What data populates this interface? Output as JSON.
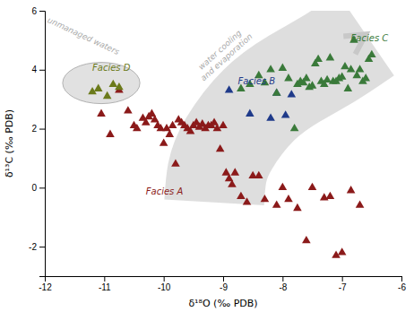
{
  "chart_data": {
    "type": "scatter",
    "xlabel": "δ¹⁸O (‰ PDB)",
    "ylabel": "δ¹³C (‰ PDB)",
    "xlim": [
      -12,
      -6
    ],
    "ylim": [
      -3,
      6
    ],
    "xticks": [
      -12,
      -11,
      -10,
      -9,
      -8,
      -7,
      -6
    ],
    "yticks": [
      -2,
      0,
      2,
      4,
      6
    ],
    "marker": "triangle",
    "series": [
      {
        "name": "Facies A",
        "color": "#8B1A1A",
        "label_x": -10.3,
        "label_y": -0.15,
        "x": [
          -11.05,
          -10.9,
          -10.75,
          -10.6,
          -10.5,
          -10.45,
          -10.35,
          -10.3,
          -10.25,
          -10.2,
          -10.15,
          -10.1,
          -10.05,
          -10.0,
          -9.95,
          -9.9,
          -9.85,
          -9.8,
          -9.75,
          -9.7,
          -9.65,
          -9.6,
          -9.55,
          -9.5,
          -9.45,
          -9.4,
          -9.35,
          -9.3,
          -9.25,
          -9.2,
          -9.15,
          -9.1,
          -9.05,
          -9.0,
          -8.95,
          -8.9,
          -8.85,
          -8.8,
          -8.7,
          -8.6,
          -8.5,
          -8.4,
          -8.3,
          -8.1,
          -8.0,
          -7.9,
          -7.75,
          -7.6,
          -7.5,
          -7.3,
          -7.2,
          -7.1,
          -7.0,
          -6.85,
          -6.7
        ],
        "values": [
          2.5,
          1.8,
          3.3,
          2.6,
          2.1,
          2.0,
          2.35,
          2.2,
          2.4,
          2.5,
          2.3,
          2.1,
          2.0,
          1.5,
          2.0,
          1.8,
          2.1,
          0.8,
          2.3,
          2.2,
          2.1,
          2.0,
          1.9,
          2.1,
          2.2,
          2.05,
          2.15,
          2.0,
          2.1,
          2.1,
          2.2,
          2.0,
          1.3,
          2.1,
          0.5,
          0.3,
          0.1,
          0.5,
          -0.3,
          -0.5,
          0.4,
          0.4,
          -0.4,
          -0.6,
          0.0,
          -0.4,
          -0.7,
          -1.8,
          0.0,
          -0.35,
          -0.3,
          -2.3,
          -2.2,
          -0.1,
          -0.6
        ]
      },
      {
        "name": "Facies B",
        "color": "#1F3A8A",
        "label_x": -8.75,
        "label_y": 3.6,
        "x": [
          -8.9,
          -8.55,
          -8.2,
          -8.1,
          -7.95,
          -7.85
        ],
        "values": [
          3.3,
          2.5,
          2.35,
          3.2,
          2.45,
          3.15
        ]
      },
      {
        "name": "Facies C",
        "color": "#3A7A3A",
        "label_x": -6.85,
        "label_y": 5.05,
        "x": [
          -8.7,
          -8.55,
          -8.4,
          -8.3,
          -8.2,
          -8.1,
          -8.0,
          -7.9,
          -7.8,
          -7.75,
          -7.7,
          -7.65,
          -7.6,
          -7.55,
          -7.5,
          -7.45,
          -7.4,
          -7.35,
          -7.3,
          -7.25,
          -7.2,
          -7.15,
          -7.1,
          -7.05,
          -7.0,
          -6.95,
          -6.9,
          -6.85,
          -6.8,
          -6.75,
          -6.7,
          -6.65,
          -6.6,
          -6.55,
          -6.5
        ],
        "values": [
          3.35,
          3.5,
          3.8,
          3.55,
          4.0,
          3.2,
          4.05,
          3.7,
          2.0,
          3.5,
          3.6,
          3.55,
          3.7,
          3.4,
          3.45,
          4.2,
          4.35,
          3.6,
          3.5,
          3.65,
          4.4,
          3.6,
          3.6,
          3.7,
          3.75,
          4.1,
          3.35,
          4.0,
          5.0,
          3.8,
          4.0,
          3.6,
          3.7,
          4.35,
          4.5
        ]
      },
      {
        "name": "Facies D",
        "color": "#6B7A1A",
        "label_x": -11.2,
        "label_y": 4.05,
        "x": [
          -11.2,
          -11.1,
          -10.95,
          -10.85,
          -10.75
        ],
        "values": [
          3.25,
          3.35,
          3.1,
          3.5,
          3.4
        ]
      }
    ],
    "shapes": [
      {
        "type": "arrow",
        "color": "#C8C8C8",
        "x": [
          -9.15,
          -9.1,
          -8.9,
          -8.4,
          -7.8,
          -7.2,
          -6.6
        ],
        "y": [
          -0.5,
          0.5,
          1.5,
          2.8,
          3.7,
          4.4,
          5.2
        ]
      },
      {
        "type": "ellipse",
        "color": "#C8C8C8",
        "cx": -11.05,
        "cy": 3.55,
        "width": 1.3,
        "height": 1.4
      }
    ],
    "annotations": [
      {
        "text": "unmanaged waters",
        "x": -11.35,
        "y": 5.15,
        "color": "#AAAAAA"
      },
      {
        "text": "water cooling\nand evaporation",
        "x": -9.0,
        "y": 4.55,
        "color": "#AAAAAA"
      }
    ]
  }
}
